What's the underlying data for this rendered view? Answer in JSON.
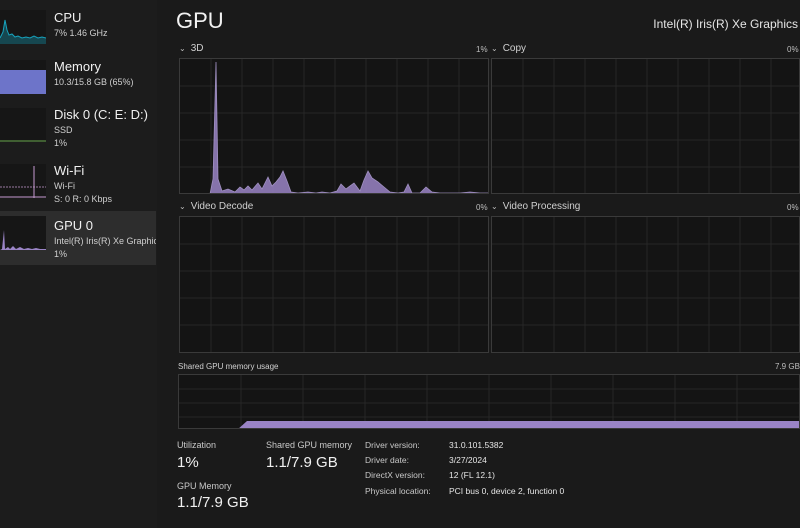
{
  "sidebar": {
    "items": [
      {
        "title": "CPU",
        "line1": "7%  1.46 GHz",
        "line2": ""
      },
      {
        "title": "Memory",
        "line1": "10.3/15.8 GB (65%)",
        "line2": ""
      },
      {
        "title": "Disk 0 (C: E: D:)",
        "line1": "SSD",
        "line2": "1%"
      },
      {
        "title": "Wi-Fi",
        "line1": "Wi-Fi",
        "line2": "S: 0  R: 0 Kbps"
      },
      {
        "title": "GPU 0",
        "line1": "Intel(R) Iris(R) Xe Graphics",
        "line2": "1%"
      }
    ]
  },
  "header": {
    "title": "GPU",
    "adapter_name": "Intel(R) Iris(R) Xe Graphics"
  },
  "panels": {
    "engine_3d": {
      "label": "3D",
      "percent": "1%"
    },
    "copy": {
      "label": "Copy",
      "percent": "0%"
    },
    "video_decode": {
      "label": "Video Decode",
      "percent": "0%"
    },
    "video_processing": {
      "label": "Video Processing",
      "percent": "0%"
    },
    "shared_memory": {
      "label": "Shared GPU memory usage",
      "max": "7.9 GB"
    }
  },
  "stats": {
    "utilization_label": "Utilization",
    "utilization_value": "1%",
    "shared_memory_label": "Shared GPU memory",
    "shared_memory_value": "1.1/7.9 GB",
    "gpu_memory_label": "GPU Memory",
    "gpu_memory_value": "1.1/7.9 GB"
  },
  "properties": [
    {
      "label": "Driver version:",
      "value": "31.0.101.5382"
    },
    {
      "label": "Driver date:",
      "value": "3/27/2024"
    },
    {
      "label": "DirectX version:",
      "value": "12 (FL 12.1)"
    },
    {
      "label": "Physical location:",
      "value": "PCI bus 0, device 2, function 0"
    }
  ],
  "colors": {
    "cpu_line": "#17a3bd",
    "memory_fill": "#6d74c9",
    "gpu_fill": "#9a84c6",
    "wifi_line": "#c79bd1"
  },
  "icons": {
    "collapse_chevron": "chevron-down-icon"
  }
}
